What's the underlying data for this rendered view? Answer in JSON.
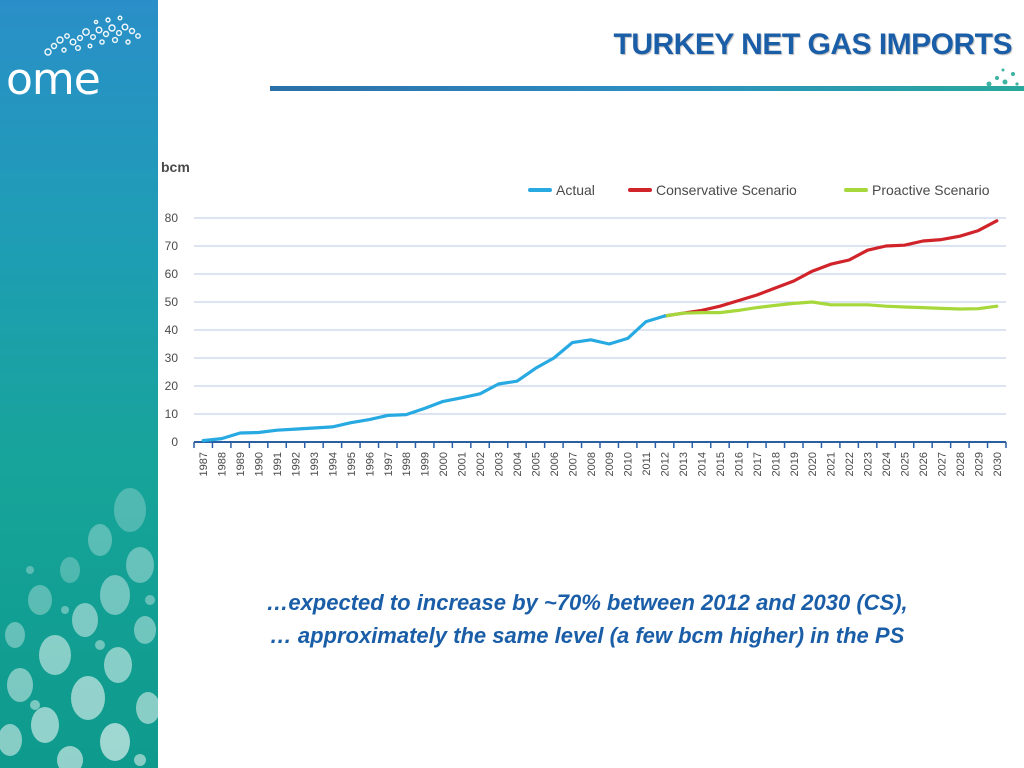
{
  "slide": {
    "title": "TURKEY NET GAS IMPORTS",
    "caption_lines": [
      "…expected to increase by ~70% between 2012 and 2030 (CS),",
      "… approximately the same level (a few bcm higher) in the PS"
    ]
  },
  "brand": {
    "logo_text": "ome"
  },
  "colors": {
    "title": "#1b5ea8",
    "actual": "#27a9e1",
    "conservative": "#d1232a",
    "proactive": "#a6d83c",
    "axis": "#2b5fa3",
    "grid": "#b9c8e6",
    "text": "#4a4a4a"
  },
  "chart_data": {
    "type": "line",
    "title": "",
    "ylabel": "bcm",
    "xlabel": "",
    "ylim": [
      0,
      80
    ],
    "yticks": [
      0,
      10,
      20,
      30,
      40,
      50,
      60,
      70,
      80
    ],
    "grid": true,
    "legend_position": "top-right",
    "x": [
      "1987",
      "1988",
      "1989",
      "1990",
      "1991",
      "1992",
      "1993",
      "1994",
      "1995",
      "1996",
      "1997",
      "1998",
      "1999",
      "2000",
      "2001",
      "2002",
      "2003",
      "2004",
      "2005",
      "2006",
      "2007",
      "2008",
      "2009",
      "2010",
      "2011",
      "2012",
      "2013",
      "2014",
      "2015",
      "2016",
      "2017",
      "2018",
      "2019",
      "2020",
      "2021",
      "2022",
      "2023",
      "2024",
      "2025",
      "2026",
      "2027",
      "2028",
      "2029",
      "2030"
    ],
    "series": [
      {
        "name": "Actual",
        "x": [
          "1987",
          "1988",
          "1989",
          "1990",
          "1991",
          "1992",
          "1993",
          "1994",
          "1995",
          "1996",
          "1997",
          "1998",
          "1999",
          "2000",
          "2001",
          "2002",
          "2003",
          "2004",
          "2005",
          "2006",
          "2007",
          "2008",
          "2009",
          "2010",
          "2011",
          "2012"
        ],
        "values": [
          0.5,
          1.2,
          3.2,
          3.4,
          4.2,
          4.6,
          5.0,
          5.4,
          6.9,
          8.0,
          9.5,
          9.8,
          12.0,
          14.5,
          15.8,
          17.2,
          20.7,
          21.7,
          26.3,
          30.0,
          35.5,
          36.5,
          35.0,
          37.0,
          43.0,
          45.0
        ]
      },
      {
        "name": "Conservative Scenario",
        "x": [
          "2012",
          "2013",
          "2014",
          "2015",
          "2016",
          "2017",
          "2018",
          "2019",
          "2020",
          "2021",
          "2022",
          "2023",
          "2024",
          "2025",
          "2026",
          "2027",
          "2028",
          "2029",
          "2030"
        ],
        "values": [
          45.0,
          46.0,
          47.0,
          48.5,
          50.5,
          52.5,
          55.0,
          57.5,
          61.0,
          63.5,
          65.0,
          68.5,
          70.0,
          70.3,
          71.8,
          72.3,
          73.5,
          75.5,
          79.0
        ]
      },
      {
        "name": "Proactive Scenario",
        "x": [
          "2012",
          "2013",
          "2014",
          "2015",
          "2016",
          "2017",
          "2018",
          "2019",
          "2020",
          "2021",
          "2022",
          "2023",
          "2024",
          "2025",
          "2026",
          "2027",
          "2028",
          "2029",
          "2030"
        ],
        "values": [
          45.0,
          46.0,
          46.2,
          46.2,
          47.0,
          48.0,
          48.8,
          49.5,
          50.0,
          49.0,
          49.0,
          49.0,
          48.5,
          48.2,
          48.0,
          47.7,
          47.5,
          47.6,
          48.5
        ]
      }
    ]
  }
}
